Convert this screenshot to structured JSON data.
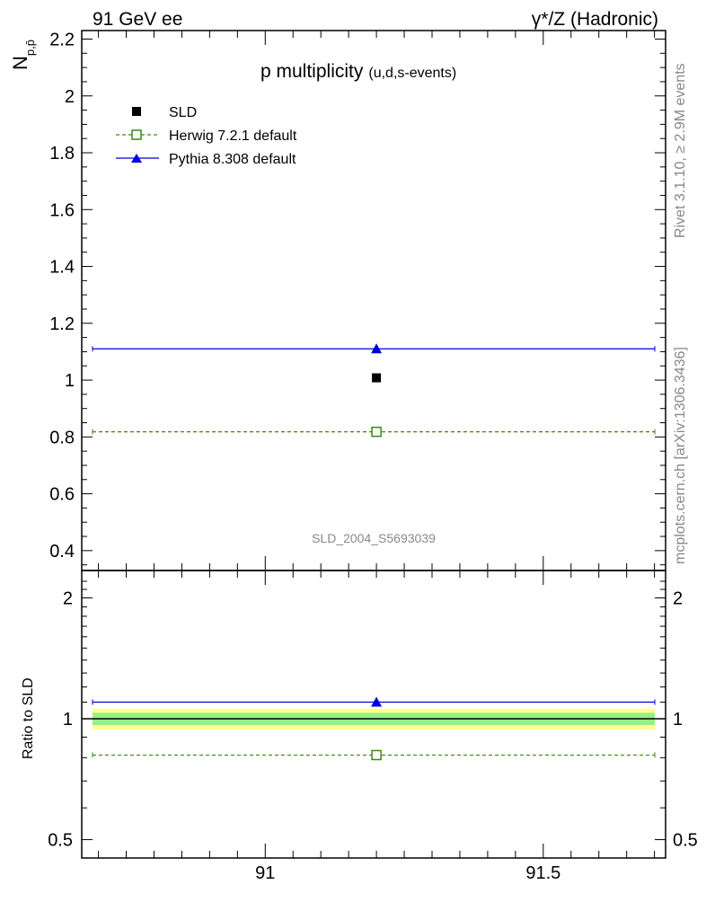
{
  "header": {
    "left": "91 GeV ee",
    "right": "γ*/Z (Hadronic)"
  },
  "side": {
    "rivet": "Rivet 3.1.10, ≥ 2.9M events",
    "mcplots": "mcplots.cern.ch [arXiv:1306.3436]"
  },
  "chart_data": [
    {
      "type": "scatter",
      "title": "p multiplicity",
      "subtitle": "(u,d,s-events)",
      "ylabel_main": "N",
      "ylabel_sub": "p,p̄",
      "watermark": "SLD_2004_S5693039",
      "xlim": [
        90.67,
        91.72
      ],
      "ylim": [
        0.33,
        2.23
      ],
      "x_ticks": [
        91,
        91.5
      ],
      "y_ticks": [
        0.4,
        0.6,
        0.8,
        1,
        1.2,
        1.4,
        1.6,
        1.8,
        2,
        2.2
      ],
      "y_tick_labels": [
        "0.4",
        "0.6",
        "0.8",
        "1",
        "1.2",
        "1.4",
        "1.6",
        "1.8",
        "2",
        "2.2"
      ],
      "legend_position": "top-left",
      "series": [
        {
          "name": "SLD",
          "marker": "square-filled",
          "color": "#000000",
          "x": [
            91.2
          ],
          "y": [
            1.008
          ],
          "xrange": null
        },
        {
          "name": "Herwig 7.2.1 default",
          "marker": "square-open",
          "line": "dashed",
          "color": "#3a8a12",
          "x": [
            91.2
          ],
          "y": [
            0.818
          ],
          "xrange": [
            90.67,
            91.72
          ]
        },
        {
          "name": "Pythia 8.308 default",
          "marker": "triangle-filled",
          "line": "solid",
          "color": "#0000dd",
          "x": [
            91.2
          ],
          "y": [
            1.11
          ],
          "xrange": [
            90.67,
            91.72
          ]
        }
      ]
    },
    {
      "type": "scatter",
      "ylabel": "Ratio to SLD",
      "xlim": [
        90.67,
        91.72
      ],
      "ylim": [
        0.45,
        2.34
      ],
      "y_scale": "log",
      "x_ticks": [
        91,
        91.5
      ],
      "x_tick_labels": [
        "91",
        "91.5"
      ],
      "y_ticks": [
        0.5,
        1,
        2
      ],
      "y_tick_labels": [
        "0.5",
        "1",
        "2"
      ],
      "bands": [
        {
          "label": "outer",
          "color": "#ffff99",
          "y": [
            0.94,
            1.06
          ]
        },
        {
          "label": "inner",
          "color": "#99ee88",
          "y": [
            0.965,
            1.035
          ]
        }
      ],
      "series": [
        {
          "name": "Herwig 7.2.1 default",
          "marker": "square-open",
          "line": "dashed",
          "color": "#3a8a12",
          "x": [
            91.2
          ],
          "y": [
            0.812
          ]
        },
        {
          "name": "Pythia 8.308 default",
          "marker": "triangle-filled",
          "line": "solid",
          "color": "#0000dd",
          "x": [
            91.2
          ],
          "y": [
            1.1
          ]
        }
      ]
    }
  ]
}
